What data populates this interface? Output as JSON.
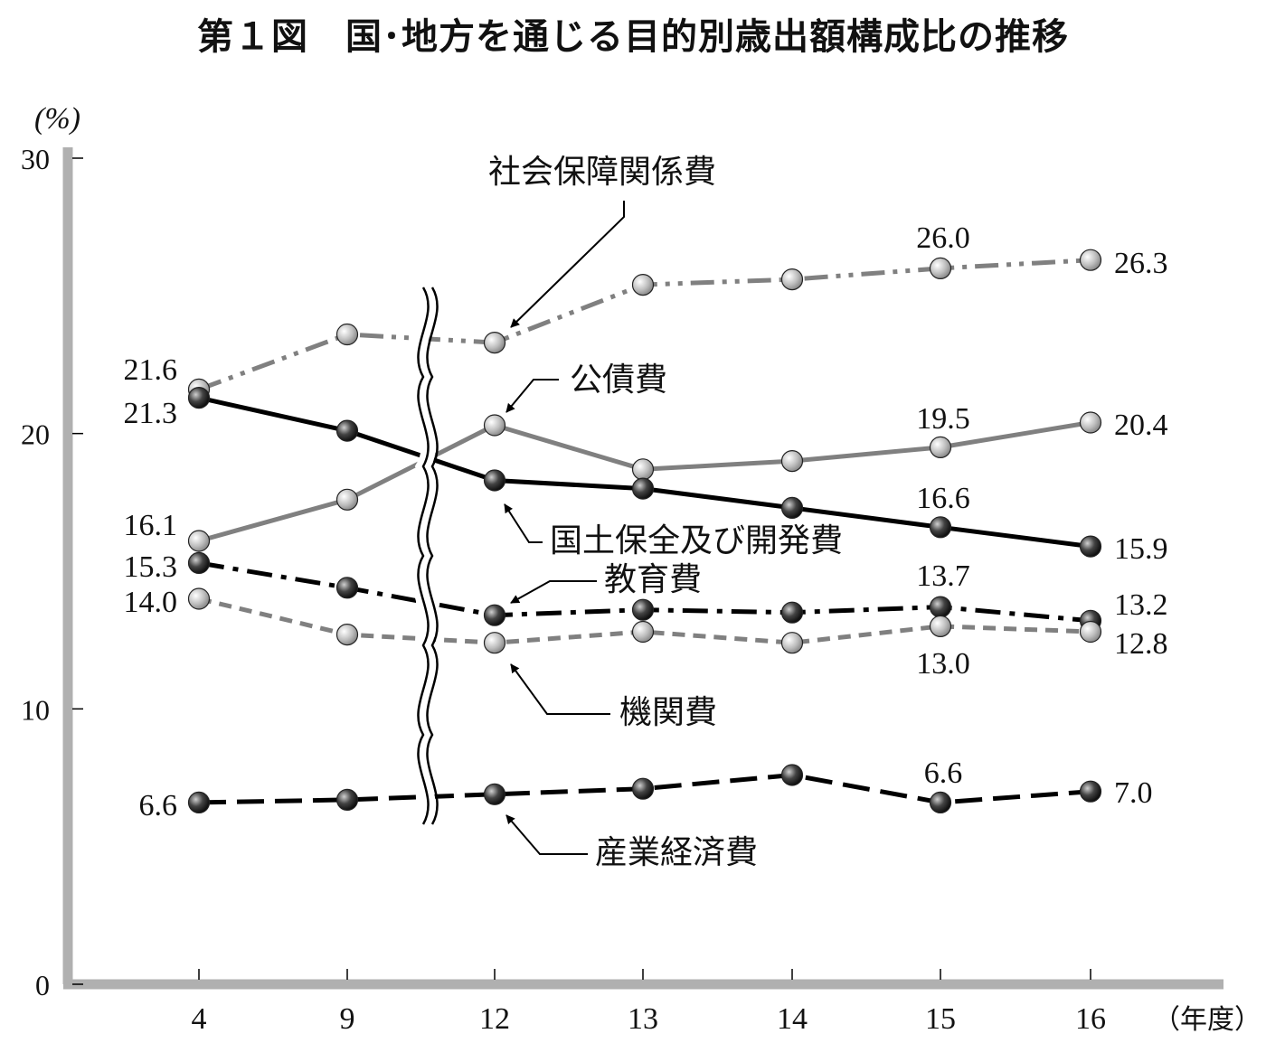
{
  "chart_data": {
    "type": "line",
    "title": "第１図　国･地方を通じる目的別歳出額構成比の推移",
    "ylabel": "(%)",
    "xlabel": "（年度）",
    "ylim": [
      0,
      30
    ],
    "yticks": [
      "0",
      "10",
      "20",
      "30"
    ],
    "categories": [
      "4",
      "9",
      "12",
      "13",
      "14",
      "15",
      "16"
    ],
    "axis_break_between": [
      "9",
      "12"
    ],
    "grid": false,
    "series": [
      {
        "name": "社会保障関係費",
        "values": [
          21.6,
          23.6,
          23.3,
          25.4,
          25.6,
          26.0,
          26.3
        ],
        "labels": [
          {
            "i": 0,
            "text": "21.6"
          },
          {
            "i": 5,
            "text": "26.0"
          },
          {
            "i": 6,
            "text": "26.3"
          }
        ],
        "line_color": "#808080",
        "marker": "light",
        "dash": "dashdotdot"
      },
      {
        "name": "公債費",
        "values": [
          16.1,
          17.6,
          20.3,
          18.7,
          19.0,
          19.5,
          20.4
        ],
        "labels": [
          {
            "i": 0,
            "text": "16.1"
          },
          {
            "i": 5,
            "text": "19.5"
          },
          {
            "i": 6,
            "text": "20.4"
          }
        ],
        "line_color": "#808080",
        "marker": "light",
        "dash": "solid"
      },
      {
        "name": "国土保全及び開発費",
        "values": [
          21.3,
          20.1,
          18.3,
          18.0,
          17.3,
          16.6,
          15.9
        ],
        "labels": [
          {
            "i": 0,
            "text": "21.3"
          },
          {
            "i": 5,
            "text": "16.6"
          },
          {
            "i": 6,
            "text": "15.9"
          }
        ],
        "line_color": "#000000",
        "marker": "dark",
        "dash": "solid"
      },
      {
        "name": "教育費",
        "values": [
          15.3,
          14.4,
          13.4,
          13.6,
          13.5,
          13.7,
          13.2
        ],
        "labels": [
          {
            "i": 0,
            "text": "15.3"
          },
          {
            "i": 5,
            "text": "13.7"
          },
          {
            "i": 6,
            "text": "13.2"
          }
        ],
        "line_color": "#000000",
        "marker": "dark",
        "dash": "dashdot"
      },
      {
        "name": "機関費",
        "values": [
          14.0,
          12.7,
          12.4,
          12.8,
          12.4,
          13.0,
          12.8
        ],
        "labels": [
          {
            "i": 0,
            "text": "14.0"
          },
          {
            "i": 5,
            "text": "13.0"
          },
          {
            "i": 6,
            "text": "12.8"
          }
        ],
        "line_color": "#808080",
        "marker": "light",
        "dash": "dashed"
      },
      {
        "name": "産業経済費",
        "values": [
          6.6,
          6.7,
          6.9,
          7.1,
          7.6,
          6.6,
          7.0
        ],
        "labels": [
          {
            "i": 0,
            "text": "6.6"
          },
          {
            "i": 5,
            "text": "6.6"
          },
          {
            "i": 6,
            "text": "7.0"
          }
        ],
        "line_color": "#000000",
        "marker": "dark",
        "dash": "longdash"
      }
    ]
  }
}
